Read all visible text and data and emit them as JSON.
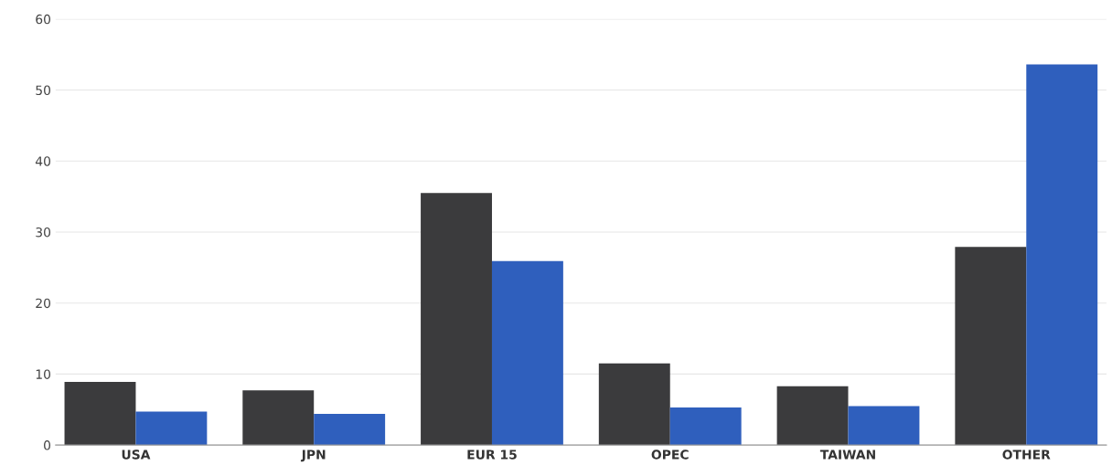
{
  "chart_data": {
    "type": "bar",
    "categories": [
      "USA",
      "JPN",
      "EUR 15",
      "OPEC",
      "TAIWAN",
      "OTHER"
    ],
    "series": [
      {
        "color": "#3b3b3d",
        "values": [
          8.9,
          7.7,
          35.5,
          11.5,
          8.3,
          27.9
        ]
      },
      {
        "color": "#2f5fbd",
        "values": [
          4.7,
          4.4,
          25.9,
          5.3,
          5.5,
          53.6
        ]
      }
    ],
    "ylim": [
      0,
      60
    ],
    "yticks": [
      0,
      10,
      20,
      30,
      40,
      50,
      60
    ],
    "grid": "y",
    "legend": false
  }
}
